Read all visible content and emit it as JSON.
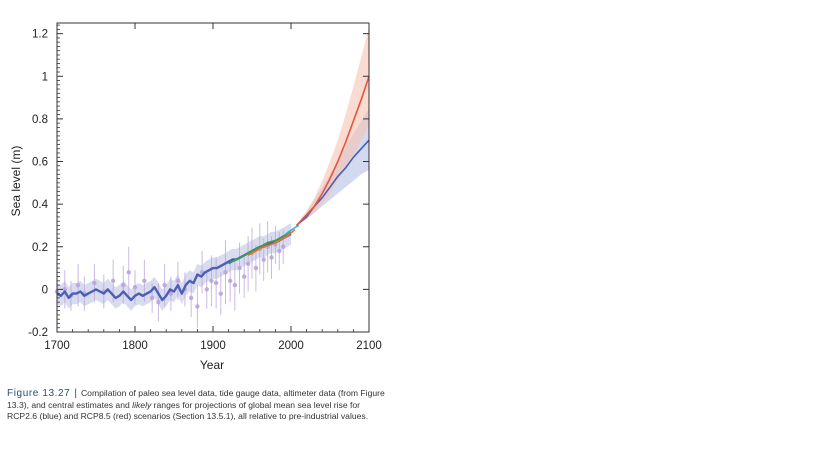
{
  "chart_data": {
    "type": "line",
    "xlabel": "Year",
    "ylabel": "Sea  level (m)",
    "xlim": [
      1700,
      2100
    ],
    "ylim": [
      -0.2,
      1.25
    ],
    "x_ticks": [
      1700,
      1800,
      1900,
      2000,
      2100
    ],
    "y_ticks": [
      -0.2,
      0,
      0.2,
      0.4,
      0.6,
      0.8,
      1,
      1.2
    ],
    "y_tick_labels": [
      "-0.2",
      "0",
      "0.2",
      "0.4",
      "0.6",
      "0.8",
      "1",
      "1.2"
    ],
    "grid": false,
    "legend": "none",
    "series": [
      {
        "role": "paleo_proxy_points",
        "color": "#b9a4d8",
        "points": [
          {
            "x": 1700,
            "y": -0.01,
            "err": 0.08
          },
          {
            "x": 1710,
            "y": 0.0,
            "err": 0.09
          },
          {
            "x": 1718,
            "y": -0.03,
            "err": 0.07
          },
          {
            "x": 1727,
            "y": 0.02,
            "err": 0.1
          },
          {
            "x": 1735,
            "y": -0.02,
            "err": 0.08
          },
          {
            "x": 1748,
            "y": 0.03,
            "err": 0.09
          },
          {
            "x": 1760,
            "y": -0.01,
            "err": 0.08
          },
          {
            "x": 1772,
            "y": 0.04,
            "err": 0.1
          },
          {
            "x": 1785,
            "y": 0.02,
            "err": 0.09
          },
          {
            "x": 1792,
            "y": 0.08,
            "err": 0.12
          },
          {
            "x": 1800,
            "y": 0.01,
            "err": 0.08
          },
          {
            "x": 1812,
            "y": 0.04,
            "err": 0.1
          },
          {
            "x": 1822,
            "y": -0.04,
            "err": 0.07
          },
          {
            "x": 1830,
            "y": -0.06,
            "err": 0.09
          },
          {
            "x": 1838,
            "y": 0.02,
            "err": 0.1
          },
          {
            "x": 1846,
            "y": -0.02,
            "err": 0.08
          },
          {
            "x": 1855,
            "y": 0.04,
            "err": 0.09
          },
          {
            "x": 1864,
            "y": 0.0,
            "err": 0.08
          },
          {
            "x": 1872,
            "y": -0.04,
            "err": 0.09
          },
          {
            "x": 1880,
            "y": -0.08,
            "err": 0.1
          },
          {
            "x": 1886,
            "y": 0.08,
            "err": 0.1
          },
          {
            "x": 1892,
            "y": 0.0,
            "err": 0.09
          },
          {
            "x": 1898,
            "y": 0.04,
            "err": 0.12
          },
          {
            "x": 1904,
            "y": 0.03,
            "err": 0.12
          },
          {
            "x": 1910,
            "y": -0.02,
            "err": 0.1
          },
          {
            "x": 1916,
            "y": 0.08,
            "err": 0.15
          },
          {
            "x": 1922,
            "y": 0.04,
            "err": 0.1
          },
          {
            "x": 1928,
            "y": 0.02,
            "err": 0.12
          },
          {
            "x": 1934,
            "y": 0.1,
            "err": 0.12
          },
          {
            "x": 1940,
            "y": 0.06,
            "err": 0.1
          },
          {
            "x": 1945,
            "y": 0.12,
            "err": 0.13
          },
          {
            "x": 1950,
            "y": 0.17,
            "err": 0.12
          },
          {
            "x": 1955,
            "y": 0.1,
            "err": 0.11
          },
          {
            "x": 1960,
            "y": 0.19,
            "err": 0.12
          },
          {
            "x": 1965,
            "y": 0.14,
            "err": 0.1
          },
          {
            "x": 1970,
            "y": 0.2,
            "err": 0.12
          },
          {
            "x": 1975,
            "y": 0.15,
            "err": 0.1
          },
          {
            "x": 1980,
            "y": 0.21,
            "err": 0.09
          },
          {
            "x": 1985,
            "y": 0.18,
            "err": 0.09
          },
          {
            "x": 1990,
            "y": 0.2,
            "err": 0.08
          }
        ]
      },
      {
        "role": "sea_level_reconstruction",
        "color": "#4a5fb5",
        "band_color": "#c9cde8",
        "band_halfwidth": 0.05,
        "x": [
          1700,
          1705,
          1710,
          1715,
          1720,
          1725,
          1730,
          1735,
          1740,
          1745,
          1750,
          1755,
          1760,
          1765,
          1770,
          1775,
          1780,
          1785,
          1790,
          1795,
          1800,
          1805,
          1810,
          1815,
          1820,
          1825,
          1830,
          1835,
          1840,
          1845,
          1850,
          1855,
          1860,
          1865,
          1870,
          1875,
          1880,
          1885,
          1890,
          1895,
          1900,
          1905,
          1910,
          1915,
          1920,
          1925,
          1930,
          1935,
          1940,
          1945,
          1950,
          1955,
          1960,
          1965,
          1970,
          1975,
          1980,
          1985,
          1990,
          1995,
          2000
        ],
        "y": [
          -0.02,
          -0.03,
          -0.01,
          -0.04,
          -0.02,
          -0.02,
          -0.01,
          -0.03,
          -0.02,
          -0.01,
          0.0,
          -0.01,
          -0.02,
          0.0,
          -0.02,
          -0.04,
          -0.03,
          -0.01,
          -0.03,
          -0.05,
          -0.03,
          -0.02,
          -0.03,
          -0.02,
          -0.01,
          0.01,
          -0.02,
          -0.05,
          -0.03,
          0.0,
          -0.01,
          0.02,
          -0.02,
          0.02,
          0.04,
          0.03,
          0.07,
          0.06,
          0.08,
          0.09,
          0.1,
          0.1,
          0.11,
          0.12,
          0.13,
          0.14,
          0.14,
          0.15,
          0.16,
          0.17,
          0.18,
          0.19,
          0.2,
          0.2,
          0.21,
          0.22,
          0.22,
          0.23,
          0.24,
          0.25,
          0.26
        ]
      },
      {
        "role": "tide_gauge_green",
        "color": "#3aa14b",
        "x": [
          1920,
          1930,
          1940,
          1950,
          1960,
          1970,
          1980,
          1990,
          2000
        ],
        "y": [
          0.12,
          0.14,
          0.16,
          0.18,
          0.2,
          0.22,
          0.23,
          0.25,
          0.27
        ]
      },
      {
        "role": "tide_gauge_orange",
        "color": "#e8772e",
        "x": [
          1945,
          1955,
          1965,
          1975,
          1985,
          1995,
          2005
        ],
        "y": [
          0.16,
          0.18,
          0.2,
          0.21,
          0.23,
          0.25,
          0.28
        ]
      },
      {
        "role": "altimeter",
        "color": "#35b3e6",
        "x": [
          1993,
          1997,
          2001,
          2005,
          2010
        ],
        "y": [
          0.26,
          0.27,
          0.28,
          0.29,
          0.3
        ]
      },
      {
        "role": "rcp26_projection",
        "color": "#4a5fb5",
        "band_color": "#b6c1e6",
        "x": [
          2007,
          2020,
          2030,
          2040,
          2050,
          2060,
          2070,
          2080,
          2090,
          2100
        ],
        "y": [
          0.3,
          0.34,
          0.39,
          0.43,
          0.48,
          0.53,
          0.57,
          0.62,
          0.66,
          0.7
        ],
        "lower": [
          0.3,
          0.33,
          0.36,
          0.39,
          0.42,
          0.45,
          0.48,
          0.51,
          0.54,
          0.56
        ],
        "upper": [
          0.3,
          0.36,
          0.42,
          0.48,
          0.54,
          0.6,
          0.67,
          0.73,
          0.79,
          0.85
        ]
      },
      {
        "role": "rcp85_projection",
        "color": "#e8553a",
        "band_color": "#f7c3b2",
        "x": [
          2007,
          2020,
          2030,
          2040,
          2050,
          2060,
          2070,
          2080,
          2090,
          2100
        ],
        "y": [
          0.3,
          0.35,
          0.39,
          0.45,
          0.52,
          0.6,
          0.69,
          0.79,
          0.89,
          1.0
        ],
        "lower": [
          0.3,
          0.33,
          0.36,
          0.4,
          0.45,
          0.51,
          0.57,
          0.63,
          0.7,
          0.77
        ],
        "upper": [
          0.3,
          0.37,
          0.43,
          0.51,
          0.6,
          0.7,
          0.82,
          0.95,
          1.09,
          1.23
        ]
      }
    ]
  },
  "caption": {
    "figure_label": "Figure 13.27",
    "separator": "|",
    "text_1": "Compilation of paleo sea level data, tide gauge data, altimeter data (from Figure 13.3), and central estimates and ",
    "text_italic": "likely",
    "text_2": " ranges for projections of global mean sea level rise for RCP2.6 (blue) and RCP8.5 (red) scenarios (Section 13.5.1), all relative to pre-industrial values."
  }
}
